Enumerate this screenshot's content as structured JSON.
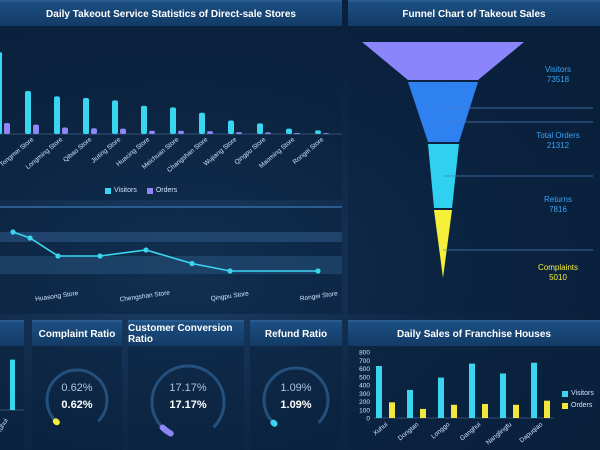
{
  "panels": {
    "direct_stores": {
      "title": "Daily Takeout Service Statistics of Direct-sale Stores",
      "legend": [
        "Visitors",
        "Orders"
      ]
    },
    "funnel": {
      "title": "Funnel Chart of Takeout Sales"
    },
    "complaint": {
      "title": "Complaint Ratio",
      "value_shadow": "0.62%",
      "value": "0.62%"
    },
    "conversion": {
      "title": "Customer Conversion Ratio",
      "value_shadow": "17.17%",
      "value": "17.17%"
    },
    "refund": {
      "title": "Refund Ratio",
      "value_shadow": "1.09%",
      "value": "1.09%"
    },
    "franchise": {
      "title": "Daily Sales of Franchise Houses",
      "legend": [
        "Visitors",
        "Orders"
      ]
    }
  },
  "colors": {
    "visitors": "#3ad6f0",
    "orders": "#8f86f7",
    "franchise_orders": "#f2e73a",
    "funnel_visitors": "#8a85fb",
    "funnel_orders": "#2f80f0",
    "funnel_returns": "#2fd0f0",
    "funnel_complaints": "#f5ef3a"
  },
  "chart_data": [
    {
      "id": "direct_stores",
      "type": "bar",
      "categories": [
        "",
        "Tongmei Store",
        "Longming Store",
        "Qibao Store",
        "Jiuting Store",
        "Huacing Store",
        "Meichuan Store",
        "Changshan Store",
        "Wujiang Store",
        "Qingpu Store",
        "Maoming Store",
        "Rongei Store"
      ],
      "series": [
        {
          "name": "Visitors",
          "values": [
            2000,
            1050,
            920,
            880,
            820,
            690,
            650,
            520,
            330,
            260,
            130,
            90
          ]
        },
        {
          "name": "Orders",
          "values": [
            270,
            230,
            160,
            140,
            130,
            80,
            80,
            70,
            45,
            40,
            25,
            20
          ]
        }
      ],
      "ylim": [
        0,
        2100
      ]
    },
    {
      "id": "line_partial",
      "type": "line",
      "categories": [
        "",
        "Huasong Store",
        "",
        "Chengshan Store",
        "",
        "Qingpu Store",
        "",
        "Rongei Store"
      ],
      "series": [
        {
          "name": "",
          "values": [
            44,
            40,
            28,
            28,
            32,
            23,
            18,
            18
          ]
        }
      ]
    },
    {
      "id": "funnel",
      "type": "bar",
      "categories": [
        "Visitors",
        "Total Orders",
        "Returns",
        "Complaints"
      ],
      "values": [
        73518,
        21312,
        7816,
        5010
      ]
    },
    {
      "id": "partial_bar",
      "type": "bar",
      "categories": [
        "Xuhui"
      ],
      "values": [
        630
      ]
    },
    {
      "id": "franchise",
      "type": "bar",
      "categories": [
        "Xuhui",
        "Dongtan",
        "Longgo",
        "Ganghui",
        "Nanglingfu",
        "Dapuqiao"
      ],
      "series": [
        {
          "name": "Visitors",
          "values": [
            630,
            340,
            490,
            660,
            540,
            670
          ]
        },
        {
          "name": "Orders",
          "values": [
            190,
            110,
            160,
            170,
            160,
            210
          ]
        }
      ],
      "yticks": [
        0,
        100,
        200,
        300,
        400,
        500,
        600,
        700,
        800
      ],
      "ylim": [
        0,
        800
      ]
    },
    {
      "id": "complaint_gauge",
      "type": "pie",
      "values": [
        0.62,
        99.38
      ]
    },
    {
      "id": "conversion_gauge",
      "type": "pie",
      "values": [
        17.17,
        82.83
      ]
    },
    {
      "id": "refund_gauge",
      "type": "pie",
      "values": [
        1.09,
        98.91
      ]
    }
  ]
}
